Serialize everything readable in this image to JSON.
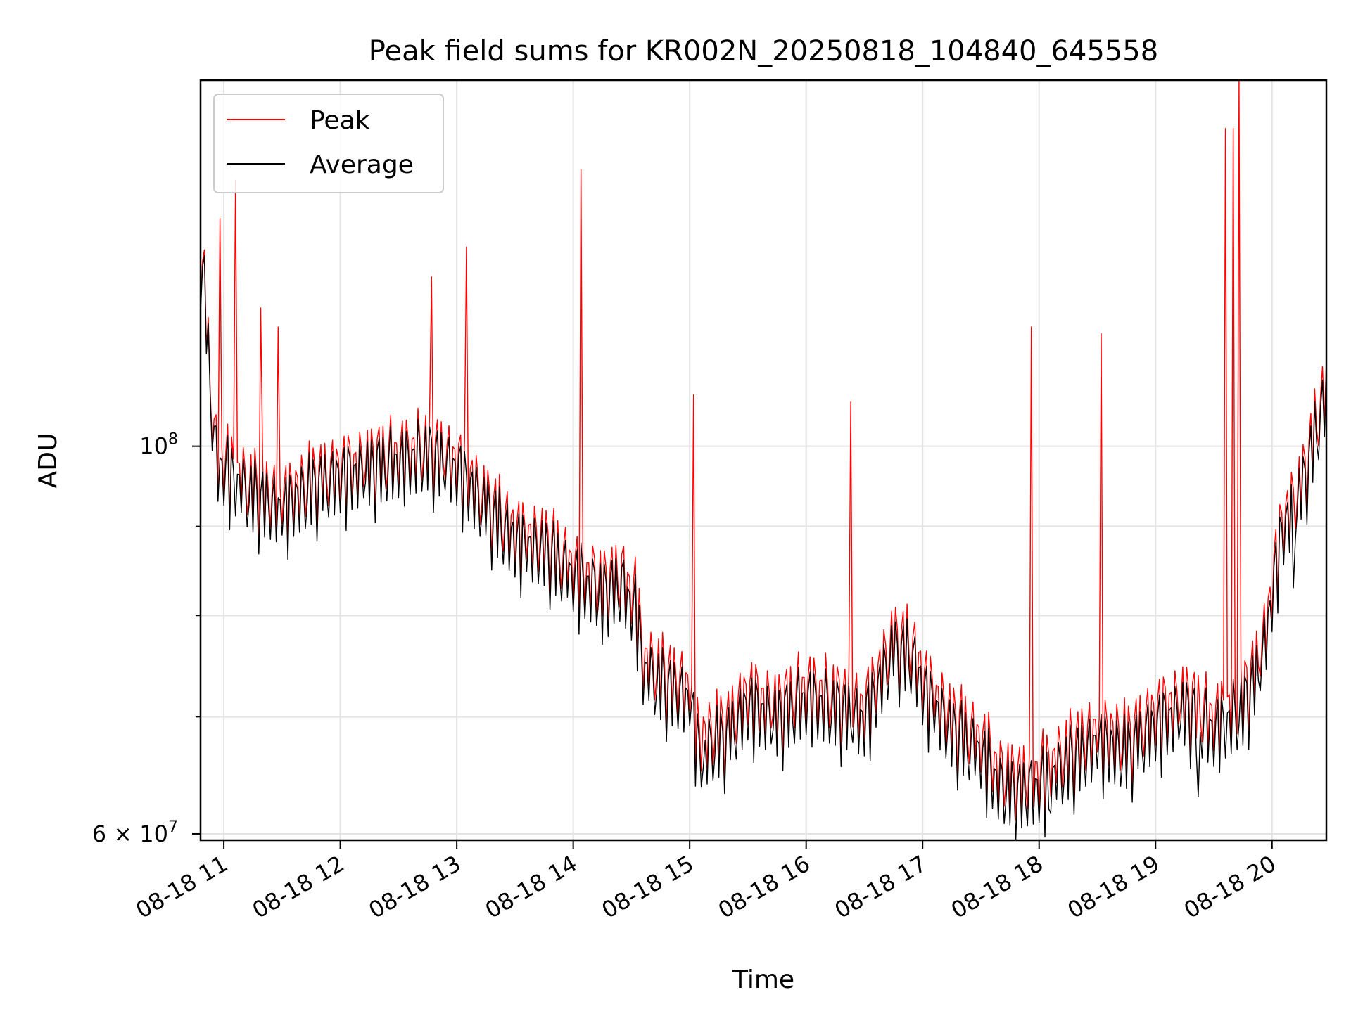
{
  "chart_data": {
    "type": "line",
    "title": "Peak field sums for KR002N_20250818_104840_645558",
    "xlabel": "Time",
    "ylabel": "ADU",
    "yscale": "log",
    "ylim": [
      59500000,
      162000000
    ],
    "xlim": [
      "2025-08-18 10:48",
      "2025-08-18 20:28"
    ],
    "grid": true,
    "legend": {
      "position": "top-left"
    },
    "x_ticks": [
      {
        "value": "2025-08-18 11:00",
        "label": "08-18 11"
      },
      {
        "value": "2025-08-18 12:00",
        "label": "08-18 12"
      },
      {
        "value": "2025-08-18 13:00",
        "label": "08-18 13"
      },
      {
        "value": "2025-08-18 14:00",
        "label": "08-18 14"
      },
      {
        "value": "2025-08-18 15:00",
        "label": "08-18 15"
      },
      {
        "value": "2025-08-18 16:00",
        "label": "08-18 16"
      },
      {
        "value": "2025-08-18 17:00",
        "label": "08-18 17"
      },
      {
        "value": "2025-08-18 18:00",
        "label": "08-18 18"
      },
      {
        "value": "2025-08-18 19:00",
        "label": "08-18 19"
      },
      {
        "value": "2025-08-18 20:00",
        "label": "08-18 20"
      }
    ],
    "y_major_ticks": [
      {
        "value": 100000000,
        "base": "10",
        "exp": "8"
      },
      {
        "value": 60000000,
        "base": "6 × 10",
        "exp": "7"
      }
    ],
    "y_minor_ticks": [
      70000000,
      80000000,
      90000000
    ],
    "series": [
      {
        "name": "Peak",
        "color": "#ff0000",
        "x": [
          "2025-08-18 10:48",
          "2025-08-18 10:50",
          "2025-08-18 10:53",
          "2025-08-18 10:55",
          "2025-08-18 10:57",
          "2025-08-18 11:00",
          "2025-08-18 11:15",
          "2025-08-18 11:30",
          "2025-08-18 11:45",
          "2025-08-18 12:00",
          "2025-08-18 12:15",
          "2025-08-18 12:30",
          "2025-08-18 12:45",
          "2025-08-18 13:00",
          "2025-08-18 13:15",
          "2025-08-18 13:30",
          "2025-08-18 13:45",
          "2025-08-18 14:00",
          "2025-08-18 14:15",
          "2025-08-18 14:25",
          "2025-08-18 14:33",
          "2025-08-18 14:36",
          "2025-08-18 14:45",
          "2025-08-18 15:00",
          "2025-08-18 15:05",
          "2025-08-18 15:20",
          "2025-08-18 15:30",
          "2025-08-18 15:45",
          "2025-08-18 16:00",
          "2025-08-18 16:15",
          "2025-08-18 16:30",
          "2025-08-18 16:45",
          "2025-08-18 16:55",
          "2025-08-18 17:00",
          "2025-08-18 17:15",
          "2025-08-18 17:30",
          "2025-08-18 17:40",
          "2025-08-18 17:50",
          "2025-08-18 18:00",
          "2025-08-18 18:15",
          "2025-08-18 18:30",
          "2025-08-18 18:45",
          "2025-08-18 19:00",
          "2025-08-18 19:15",
          "2025-08-18 19:30",
          "2025-08-18 19:45",
          "2025-08-18 19:55",
          "2025-08-18 20:05",
          "2025-08-18 20:15",
          "2025-08-18 20:28"
        ],
        "y": [
          131000000,
          128000000,
          112000000,
          104000000,
          102000000,
          101000000,
          97500000,
          96000000,
          98500000,
          100000000,
          101000000,
          102000000,
          103000000,
          101000000,
          96000000,
          92000000,
          91000000,
          88000000,
          86000000,
          87000000,
          84000000,
          78000000,
          76500000,
          75000000,
          70000000,
          71500000,
          74500000,
          73000000,
          75000000,
          74000000,
          73000000,
          80000000,
          79000000,
          76000000,
          72000000,
          70000000,
          67000000,
          66500000,
          67000000,
          69000000,
          71000000,
          70000000,
          72500000,
          74000000,
          72000000,
          74000000,
          79000000,
          93000000,
          98000000,
          112000000
        ],
        "spikes": [
          {
            "x": "2025-08-18 10:58",
            "y": 135000000
          },
          {
            "x": "2025-08-18 11:06",
            "y": 142000000
          },
          {
            "x": "2025-08-18 11:19",
            "y": 120000000
          },
          {
            "x": "2025-08-18 11:28",
            "y": 117000000
          },
          {
            "x": "2025-08-18 12:47",
            "y": 125000000
          },
          {
            "x": "2025-08-18 13:05",
            "y": 130000000
          },
          {
            "x": "2025-08-18 14:04",
            "y": 144000000
          },
          {
            "x": "2025-08-18 15:02",
            "y": 107000000
          },
          {
            "x": "2025-08-18 16:23",
            "y": 106000000
          },
          {
            "x": "2025-08-18 17:56",
            "y": 117000000
          },
          {
            "x": "2025-08-18 18:32",
            "y": 116000000
          },
          {
            "x": "2025-08-18 19:36",
            "y": 152000000
          },
          {
            "x": "2025-08-18 19:40",
            "y": 152000000
          },
          {
            "x": "2025-08-18 19:43",
            "y": 162000000
          }
        ]
      },
      {
        "name": "Average",
        "color": "#000000",
        "x": [
          "2025-08-18 10:48",
          "2025-08-18 10:50",
          "2025-08-18 10:53",
          "2025-08-18 10:55",
          "2025-08-18 10:57",
          "2025-08-18 11:00",
          "2025-08-18 11:15",
          "2025-08-18 11:30",
          "2025-08-18 11:45",
          "2025-08-18 12:00",
          "2025-08-18 12:15",
          "2025-08-18 12:30",
          "2025-08-18 12:45",
          "2025-08-18 13:00",
          "2025-08-18 13:15",
          "2025-08-18 13:30",
          "2025-08-18 13:45",
          "2025-08-18 14:00",
          "2025-08-18 14:15",
          "2025-08-18 14:25",
          "2025-08-18 14:33",
          "2025-08-18 14:36",
          "2025-08-18 14:45",
          "2025-08-18 15:00",
          "2025-08-18 15:05",
          "2025-08-18 15:20",
          "2025-08-18 15:30",
          "2025-08-18 15:45",
          "2025-08-18 16:00",
          "2025-08-18 16:15",
          "2025-08-18 16:30",
          "2025-08-18 16:45",
          "2025-08-18 16:55",
          "2025-08-18 17:00",
          "2025-08-18 17:15",
          "2025-08-18 17:30",
          "2025-08-18 17:40",
          "2025-08-18 17:50",
          "2025-08-18 18:00",
          "2025-08-18 18:15",
          "2025-08-18 18:30",
          "2025-08-18 18:45",
          "2025-08-18 19:00",
          "2025-08-18 19:15",
          "2025-08-18 19:30",
          "2025-08-18 19:45",
          "2025-08-18 19:55",
          "2025-08-18 20:05",
          "2025-08-18 20:15",
          "2025-08-18 20:28"
        ],
        "y": [
          130000000,
          127000000,
          111000000,
          103000000,
          100000000,
          99500000,
          96000000,
          94500000,
          97000000,
          98500000,
          99500000,
          100500000,
          101500000,
          99500000,
          94500000,
          90500000,
          89500000,
          86500000,
          84500000,
          85500000,
          82000000,
          76500000,
          75000000,
          73500000,
          68500000,
          70000000,
          73000000,
          71500000,
          73500000,
          72500000,
          71500000,
          78500000,
          77500000,
          74500000,
          70500000,
          68500000,
          65500000,
          65000000,
          65500000,
          67500000,
          69500000,
          68500000,
          71000000,
          72500000,
          70500000,
          72500000,
          77500000,
          91500000,
          96500000,
          110000000
        ],
        "dips": [
          {
            "x": "2025-08-18 11:31",
            "y": 92500000
          },
          {
            "x": "2025-08-18 14:15",
            "y": 77000000
          },
          {
            "x": "2025-08-18 15:07",
            "y": 65500000
          },
          {
            "x": "2025-08-18 17:48",
            "y": 59500000
          },
          {
            "x": "2025-08-18 18:05",
            "y": 62000000
          },
          {
            "x": "2025-08-18 19:22",
            "y": 63000000
          },
          {
            "x": "2025-08-18 20:11",
            "y": 83000000
          }
        ]
      }
    ]
  }
}
